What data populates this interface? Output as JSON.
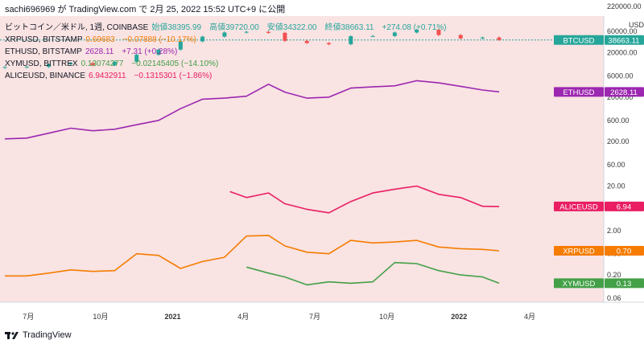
{
  "header": {
    "text": "sachi696969 が TradingView.com で 2月 25, 2022 15:52 UTC+9 に公開"
  },
  "legend": [
    {
      "name": "ビットコイン／米ドル, 1週, COINBASE",
      "values": "始値38395.99　高値39720.00　安値34322.00　終値38663.11　+274.08 (+0.71%)",
      "color": "#26a69a"
    },
    {
      "name": "XRPUSD, BITSTAMP",
      "values": "0.69683　−0.07888 (−10.17%)",
      "color": "#f57c00"
    },
    {
      "name": "ETHUSD, BITSTAMP",
      "values": "2628.11　+7.31 (+0.28%)",
      "color": "#9c27b0"
    },
    {
      "name": "XYMUSD, BITTREX",
      "values": "0.13074277　−0.02145405 (−14.10%)",
      "color": "#43a047"
    },
    {
      "name": "ALICEUSD, BINANCE",
      "values": "6.9432911　−0.1315301 (−1.86%)",
      "color": "#e91e63"
    }
  ],
  "footer": {
    "brand": "TradingView"
  },
  "chart_data": {
    "type": "line",
    "scale": "log",
    "unit": "USD",
    "x_labels": [
      "7月",
      "10月",
      "2021",
      "4月",
      "7月",
      "10月",
      "2022",
      "4月"
    ],
    "x_dates": [
      "2020-07",
      "2020-10",
      "2021-01",
      "2021-04",
      "2021-07",
      "2021-10",
      "2022-01",
      "2022-04"
    ],
    "y_ticks": [
      220000,
      60000,
      20000,
      6000,
      2000,
      600,
      200,
      60,
      20,
      2,
      0.6,
      0.2,
      0.06
    ],
    "y_tick_labels": [
      "220000.00",
      "60000.00",
      "20000.00",
      "6000.00",
      "2000.00",
      "600.00",
      "200.00",
      "60.00",
      "20.00",
      "2.00",
      "0.60",
      "0.20",
      "0.06"
    ],
    "series": [
      {
        "name": "BTCUSD",
        "tag": "BTCUSD",
        "last_label": "38663.11",
        "color": "#26a69a",
        "down_color": "#ef5350",
        "kind": "candle",
        "x": [
          "2020-06-01",
          "2020-06-29",
          "2020-07-27",
          "2020-08-24",
          "2020-09-21",
          "2020-10-19",
          "2020-11-16",
          "2020-12-14",
          "2021-01-11",
          "2021-02-08",
          "2021-03-08",
          "2021-04-05",
          "2021-05-03",
          "2021-05-24",
          "2021-06-21",
          "2021-07-19",
          "2021-08-16",
          "2021-09-13",
          "2021-10-11",
          "2021-11-08",
          "2021-12-06",
          "2022-01-03",
          "2022-01-31",
          "2022-02-21"
        ],
        "values": [
          9500,
          9600,
          11000,
          11700,
          10500,
          12500,
          18000,
          23500,
          36000,
          46000,
          57000,
          59000,
          56000,
          37000,
          33000,
          31000,
          47000,
          47500,
          57000,
          66000,
          50000,
          42000,
          44000,
          38663
        ]
      },
      {
        "name": "ETHUSD",
        "tag": "ETHUSD",
        "last_label": "2628.11",
        "color": "#9c27b0",
        "kind": "line",
        "x": [
          "2020-06-01",
          "2020-06-29",
          "2020-07-27",
          "2020-08-24",
          "2020-09-21",
          "2020-10-19",
          "2020-11-16",
          "2020-12-14",
          "2021-01-11",
          "2021-02-08",
          "2021-03-08",
          "2021-04-05",
          "2021-05-03",
          "2021-05-24",
          "2021-06-21",
          "2021-07-19",
          "2021-08-16",
          "2021-09-13",
          "2021-10-11",
          "2021-11-08",
          "2021-12-06",
          "2022-01-03",
          "2022-01-31",
          "2022-02-21"
        ],
        "values": [
          230,
          240,
          310,
          400,
          350,
          380,
          480,
          600,
          1100,
          1800,
          1900,
          2100,
          3900,
          2600,
          1900,
          2000,
          3200,
          3400,
          3600,
          4700,
          4200,
          3500,
          2900,
          2628
        ]
      },
      {
        "name": "ALICEUSD",
        "tag": "ALICEUSD",
        "last_label": "6.94",
        "color": "#e91e63",
        "kind": "line",
        "x": [
          "2021-03-15",
          "2021-04-05",
          "2021-05-03",
          "2021-05-24",
          "2021-06-21",
          "2021-07-19",
          "2021-08-16",
          "2021-09-13",
          "2021-10-11",
          "2021-11-08",
          "2021-12-06",
          "2022-01-03",
          "2022-01-31",
          "2022-02-21"
        ],
        "values": [
          15,
          11,
          14,
          8,
          6,
          5,
          9,
          14,
          17,
          20,
          13,
          11,
          7,
          6.94
        ]
      },
      {
        "name": "XRPUSD",
        "tag": "XRPUSD",
        "last_label": "0.70",
        "color": "#f57c00",
        "kind": "line",
        "x": [
          "2020-06-01",
          "2020-06-29",
          "2020-07-27",
          "2020-08-24",
          "2020-09-21",
          "2020-10-19",
          "2020-11-16",
          "2020-12-14",
          "2021-01-11",
          "2021-02-08",
          "2021-03-08",
          "2021-04-05",
          "2021-05-03",
          "2021-05-24",
          "2021-06-21",
          "2021-07-19",
          "2021-08-16",
          "2021-09-13",
          "2021-10-11",
          "2021-11-08",
          "2021-12-06",
          "2022-01-03",
          "2022-01-31",
          "2022-02-21"
        ],
        "values": [
          0.19,
          0.19,
          0.22,
          0.26,
          0.24,
          0.25,
          0.6,
          0.55,
          0.28,
          0.4,
          0.5,
          1.5,
          1.55,
          0.9,
          0.65,
          0.6,
          1.2,
          1.05,
          1.1,
          1.2,
          0.85,
          0.78,
          0.75,
          0.7
        ]
      },
      {
        "name": "XYMUSD",
        "tag": "XYMUSD",
        "last_label": "0.13",
        "color": "#43a047",
        "kind": "line",
        "x": [
          "2021-04-05",
          "2021-05-03",
          "2021-05-24",
          "2021-06-21",
          "2021-07-19",
          "2021-08-16",
          "2021-09-13",
          "2021-10-11",
          "2021-11-08",
          "2021-12-06",
          "2022-01-03",
          "2022-01-31",
          "2022-02-21"
        ],
        "values": [
          0.3,
          0.22,
          0.18,
          0.12,
          0.14,
          0.13,
          0.14,
          0.38,
          0.36,
          0.25,
          0.2,
          0.18,
          0.13
        ]
      }
    ]
  }
}
